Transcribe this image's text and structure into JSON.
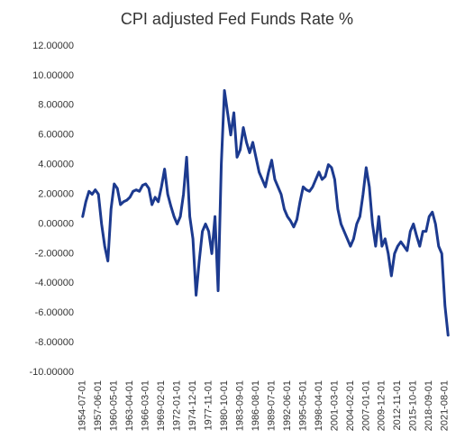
{
  "chart_data": {
    "type": "line",
    "title": "CPI adjusted Fed Funds Rate %",
    "categories": [
      "1954-07-01",
      null,
      null,
      null,
      null,
      "1957-06-01",
      null,
      null,
      null,
      null,
      "1960-05-01",
      null,
      null,
      null,
      null,
      "1963-04-01",
      null,
      null,
      null,
      null,
      "1966-03-01",
      null,
      null,
      null,
      null,
      "1969-02-01",
      null,
      null,
      null,
      null,
      "1972-01-01",
      null,
      null,
      null,
      null,
      "1974-12-01",
      null,
      null,
      null,
      null,
      "1977-11-01",
      null,
      null,
      null,
      null,
      "1980-10-01",
      null,
      null,
      null,
      null,
      "1983-09-01",
      null,
      null,
      null,
      null,
      "1986-08-01",
      null,
      null,
      null,
      null,
      "1989-07-01",
      null,
      null,
      null,
      null,
      "1992-06-01",
      null,
      null,
      null,
      null,
      "1995-05-01",
      null,
      null,
      null,
      null,
      "1998-04-01",
      null,
      null,
      null,
      null,
      "2001-03-01",
      null,
      null,
      null,
      null,
      "2004-02-01",
      null,
      null,
      null,
      null,
      "2007-01-01",
      null,
      null,
      null,
      null,
      "2009-12-01",
      null,
      null,
      null,
      null,
      "2012-11-01",
      null,
      null,
      null,
      null,
      "2015-10-01",
      null,
      null,
      null,
      null,
      "2018-09-01",
      null,
      null,
      null,
      null,
      "2021-08-01",
      null
    ],
    "series": [
      {
        "name": "CPI adjusted Fed Funds Rate",
        "color": "#1c3a8f",
        "values": [
          0.5,
          1.5,
          2.2,
          2.0,
          2.3,
          2.0,
          0.0,
          -1.5,
          -2.5,
          1.0,
          2.7,
          2.4,
          1.3,
          1.5,
          1.6,
          1.8,
          2.2,
          2.3,
          2.2,
          2.6,
          2.7,
          2.4,
          1.3,
          1.8,
          1.5,
          2.5,
          3.7,
          2.0,
          1.2,
          0.5,
          0.0,
          0.5,
          2.0,
          4.5,
          0.5,
          -1.0,
          -4.8,
          -2.5,
          -0.5,
          0.0,
          -0.5,
          -2.0,
          0.5,
          -4.5,
          4.0,
          9.0,
          7.5,
          6.0,
          7.5,
          4.5,
          5.0,
          6.5,
          5.5,
          4.8,
          5.5,
          4.5,
          3.5,
          3.0,
          2.5,
          3.5,
          4.3,
          3.0,
          2.5,
          2.0,
          1.0,
          0.5,
          0.2,
          -0.2,
          0.3,
          1.5,
          2.5,
          2.3,
          2.2,
          2.5,
          3.0,
          3.5,
          3.0,
          3.2,
          4.0,
          3.8,
          3.0,
          1.0,
          0.0,
          -0.5,
          -1.0,
          -1.5,
          -1.0,
          0.0,
          0.5,
          2.0,
          3.8,
          2.5,
          0.0,
          -1.5,
          0.5,
          -1.5,
          -1.0,
          -2.0,
          -3.5,
          -2.0,
          -1.5,
          -1.2,
          -1.5,
          -1.8,
          -0.5,
          0.0,
          -0.8,
          -1.5,
          -0.5,
          -0.5,
          0.5,
          0.8,
          0.0,
          -1.5,
          -2.0,
          -5.5,
          -7.5
        ]
      }
    ],
    "ylim": [
      -10,
      12
    ],
    "yticks": [
      {
        "value": -10,
        "label": "-10.00000"
      },
      {
        "value": -8,
        "label": "-8.00000"
      },
      {
        "value": -6,
        "label": "-6.00000"
      },
      {
        "value": -4,
        "label": "-4.00000"
      },
      {
        "value": -2,
        "label": "-2.00000"
      },
      {
        "value": 0,
        "label": "0.00000"
      },
      {
        "value": 2,
        "label": "2.00000"
      },
      {
        "value": 4,
        "label": "4.00000"
      },
      {
        "value": 6,
        "label": "6.00000"
      },
      {
        "value": 8,
        "label": "8.00000"
      },
      {
        "value": 10,
        "label": "10.00000"
      },
      {
        "value": 12,
        "label": "12.00000"
      }
    ],
    "grid": false
  }
}
